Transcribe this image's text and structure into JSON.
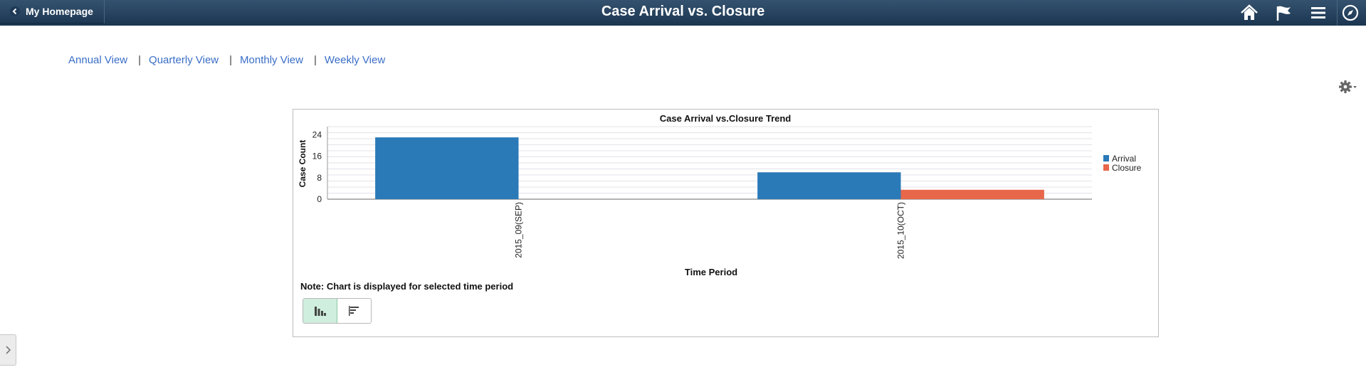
{
  "header": {
    "back_label": "My Homepage",
    "title": "Case Arrival vs. Closure",
    "icons": [
      "home-icon",
      "flag-icon",
      "menu-icon",
      "navbar-compass-icon"
    ]
  },
  "views": {
    "annual": "Annual View",
    "quarterly": "Quarterly View",
    "monthly": "Monthly View",
    "weekly": "Weekly View",
    "separator": "|"
  },
  "gear_icon": "gear-icon",
  "chart_data": {
    "type": "bar",
    "title": "Case Arrival vs.Closure Trend",
    "xlabel": "Time Period",
    "ylabel": "Case Count",
    "categories": [
      "2015_09(SEP)",
      "2015_10(OCT)"
    ],
    "series": [
      {
        "name": "Arrival",
        "values": [
          23,
          10
        ],
        "color": "#2a7ab8"
      },
      {
        "name": "Closure",
        "values": [
          0,
          3.5
        ],
        "color": "#e8674a"
      }
    ],
    "ylim": [
      0,
      27
    ],
    "yticks": [
      0,
      8,
      16,
      24
    ],
    "legend_position": "right",
    "grid": true
  },
  "note": "Note: Chart is displayed for selected time period",
  "chart_toggle": [
    "bar-chart-icon",
    "horizontal-bar-chart-icon"
  ]
}
